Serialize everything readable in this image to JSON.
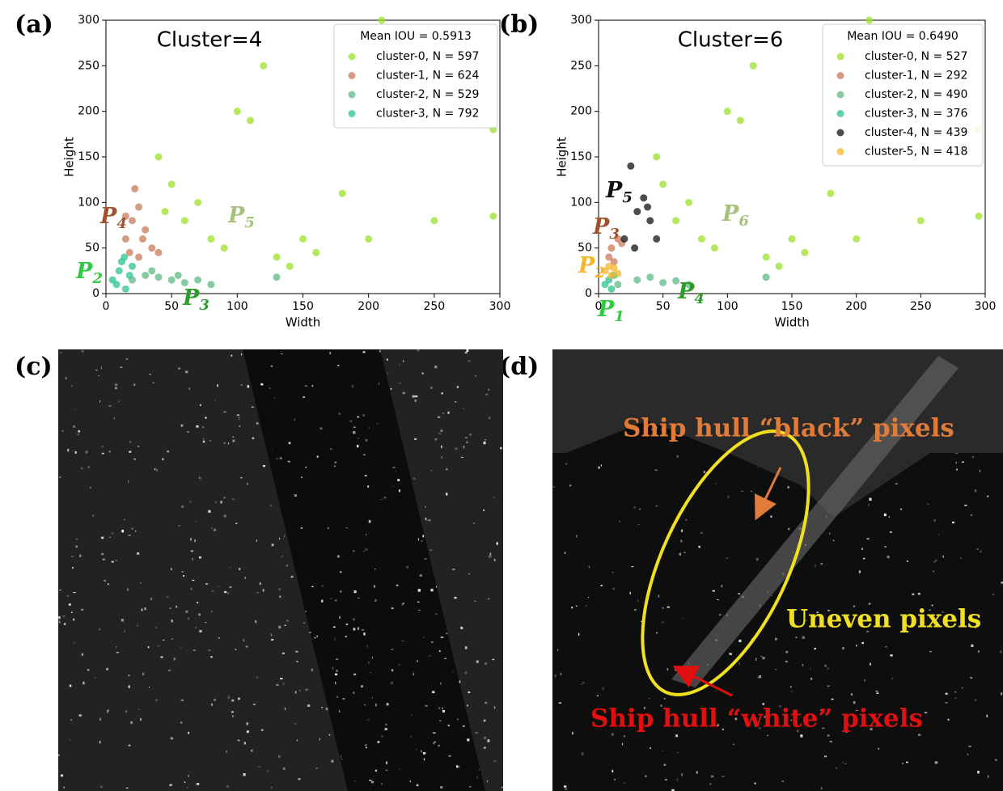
{
  "panel_labels": [
    "(a)",
    "(b)",
    "(c)",
    "(d)"
  ],
  "chart_data": [
    {
      "type": "scatter",
      "title": "Cluster=4",
      "xlabel": "Width",
      "ylabel": "Height",
      "xlim": [
        0,
        300
      ],
      "ylim": [
        0,
        300
      ],
      "xticks": [
        0,
        50,
        100,
        150,
        200,
        250,
        300
      ],
      "yticks": [
        0,
        50,
        100,
        150,
        200,
        250,
        300
      ],
      "legend_title": "Mean IOU = 0.5913",
      "legend_position": "upper right",
      "series": [
        {
          "name": "cluster-0, N =  597",
          "color": "#9be22a",
          "x": [
            40,
            50,
            60,
            80,
            100,
            120,
            90,
            130,
            150,
            200,
            250,
            295,
            295,
            210,
            180,
            140,
            70,
            45,
            110,
            160
          ],
          "y": [
            150,
            120,
            80,
            60,
            200,
            250,
            50,
            40,
            60,
            60,
            80,
            85,
            180,
            300,
            110,
            30,
            100,
            90,
            190,
            45
          ]
        },
        {
          "name": "cluster-1, N =  624",
          "color": "#c8795a",
          "x": [
            15,
            20,
            25,
            30,
            35,
            25,
            40,
            22,
            15,
            28,
            18
          ],
          "y": [
            60,
            80,
            95,
            70,
            50,
            40,
            45,
            115,
            85,
            60,
            45
          ]
        },
        {
          "name": "cluster-2, N =  529",
          "color": "#5fb886",
          "x": [
            20,
            30,
            40,
            50,
            60,
            70,
            80,
            130,
            35,
            55
          ],
          "y": [
            15,
            20,
            18,
            15,
            12,
            15,
            10,
            18,
            25,
            20
          ]
        },
        {
          "name": "cluster-3, N =  792",
          "color": "#2cc48f",
          "x": [
            8,
            10,
            12,
            15,
            18,
            20,
            5,
            14
          ],
          "y": [
            10,
            25,
            35,
            5,
            20,
            30,
            15,
            40
          ]
        }
      ],
      "annotations": [
        {
          "text": "P",
          "sub": "4",
          "color": "#a0522d"
        },
        {
          "text": "P",
          "sub": "2",
          "color": "#2ecc40"
        },
        {
          "text": "P",
          "sub": "3",
          "color": "#2a9d2a"
        },
        {
          "text": "P",
          "sub": "5",
          "color": "#a3c47a"
        }
      ]
    },
    {
      "type": "scatter",
      "title": "Cluster=6",
      "xlabel": "Width",
      "ylabel": "Height",
      "xlim": [
        0,
        300
      ],
      "ylim": [
        0,
        300
      ],
      "xticks": [
        0,
        50,
        100,
        150,
        200,
        250,
        300
      ],
      "yticks": [
        0,
        50,
        100,
        150,
        200,
        250,
        300
      ],
      "legend_title": "Mean IOU = 0.6490",
      "legend_position": "upper right",
      "series": [
        {
          "name": "cluster-0, N =  527",
          "color": "#9be22a",
          "x": [
            45,
            50,
            60,
            80,
            100,
            120,
            90,
            130,
            150,
            200,
            250,
            295,
            295,
            210,
            180,
            140,
            70,
            110,
            160
          ],
          "y": [
            150,
            120,
            80,
            60,
            200,
            250,
            50,
            40,
            60,
            60,
            80,
            85,
            180,
            300,
            110,
            30,
            100,
            190,
            45
          ]
        },
        {
          "name": "cluster-1, N =  292",
          "color": "#c8795a",
          "x": [
            8,
            10,
            15,
            12,
            18
          ],
          "y": [
            40,
            50,
            60,
            35,
            55
          ]
        },
        {
          "name": "cluster-2, N =  490",
          "color": "#5fb886",
          "x": [
            15,
            30,
            50,
            70,
            130,
            40,
            60
          ],
          "y": [
            10,
            15,
            12,
            10,
            18,
            18,
            14
          ]
        },
        {
          "name": "cluster-3, N =  376",
          "color": "#2cc48f",
          "x": [
            5,
            8,
            10,
            12
          ],
          "y": [
            10,
            15,
            5,
            20
          ]
        },
        {
          "name": "cluster-4, N =  439",
          "color": "#111111",
          "x": [
            20,
            30,
            35,
            25,
            40,
            28,
            45,
            38
          ],
          "y": [
            60,
            90,
            105,
            140,
            80,
            50,
            60,
            95
          ]
        },
        {
          "name": "cluster-5, N =  418",
          "color": "#f5b728",
          "x": [
            5,
            8,
            10,
            12,
            15
          ],
          "y": [
            25,
            30,
            20,
            28,
            22
          ]
        }
      ],
      "annotations": [
        {
          "text": "P",
          "sub": "5",
          "color": "#111111"
        },
        {
          "text": "P",
          "sub": "3",
          "color": "#a0522d"
        },
        {
          "text": "P",
          "sub": "2",
          "color": "#f5b728"
        },
        {
          "text": "P",
          "sub": "1",
          "color": "#2ecc40"
        },
        {
          "text": "P",
          "sub": "4",
          "color": "#2a9d2a"
        },
        {
          "text": "P",
          "sub": "6",
          "color": "#a3c47a"
        }
      ]
    }
  ],
  "image_annotations": [
    {
      "text": "Ship hull “black” pixels",
      "color": "#e07b39"
    },
    {
      "text": "Uneven pixels",
      "color": "#f0e020"
    },
    {
      "text": "Ship hull “white” pixels",
      "color": "#e01010"
    }
  ]
}
